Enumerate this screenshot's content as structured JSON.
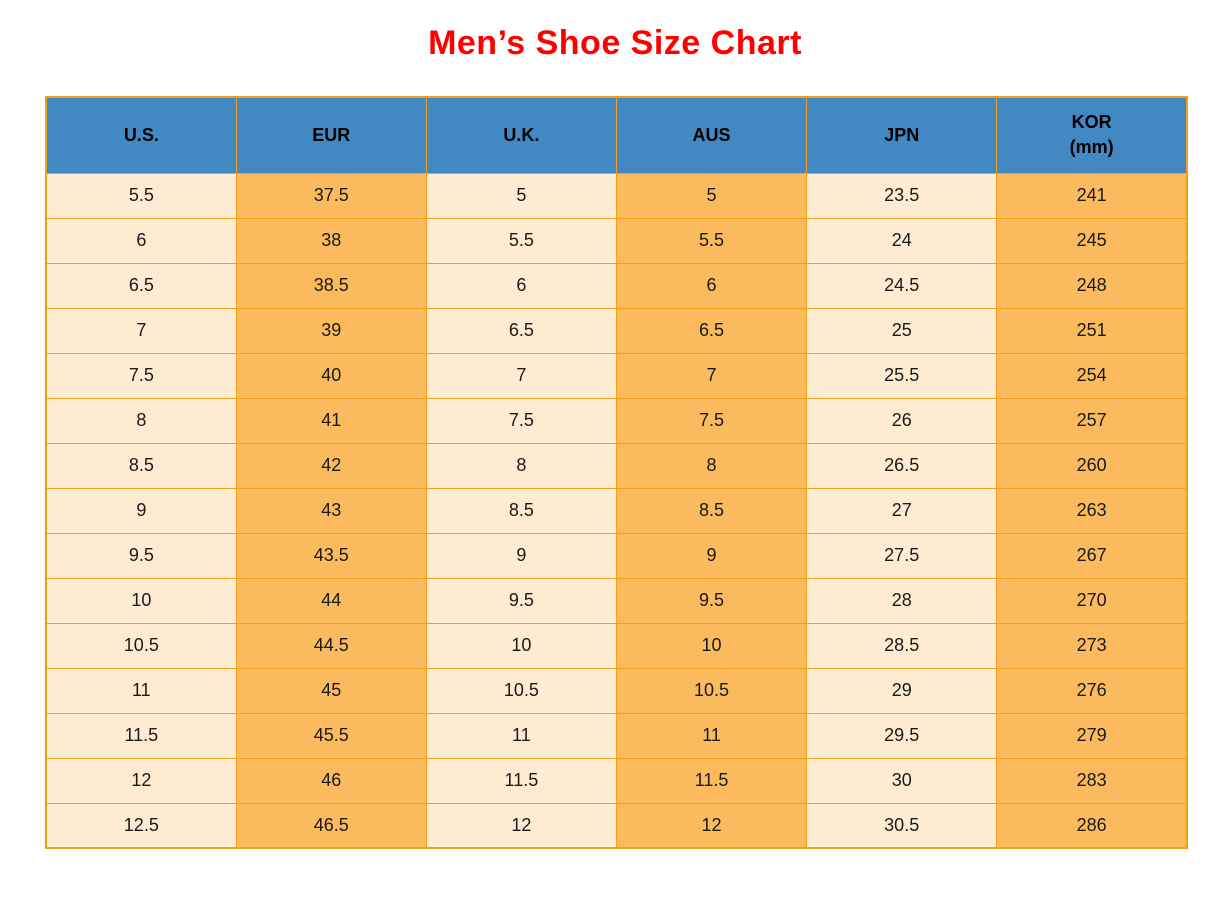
{
  "page": {
    "title": "Men’s Shoe Size Chart"
  },
  "colors": {
    "title_color": "#ff0000",
    "header_bg": "#4289c4",
    "header_text": "#000000",
    "cell_text": "#1a1a1a",
    "grid_color": "#f29f1c",
    "col_light": "#fdecd2",
    "col_orange": "#fcba5e"
  },
  "chart_data": {
    "type": "table",
    "title": "Men’s Shoe Size Chart",
    "columns": [
      "U.S.",
      "EUR",
      "U.K.",
      "AUS",
      "JPN",
      "KOR"
    ],
    "column_sublabels": [
      "",
      "",
      "",
      "",
      "",
      "(mm)"
    ],
    "column_shading": [
      "light",
      "orange",
      "light",
      "orange",
      "light",
      "orange"
    ],
    "rows": [
      [
        "5.5",
        "37.5",
        "5",
        "5",
        "23.5",
        "241"
      ],
      [
        "6",
        "38",
        "5.5",
        "5.5",
        "24",
        "245"
      ],
      [
        "6.5",
        "38.5",
        "6",
        "6",
        "24.5",
        "248"
      ],
      [
        "7",
        "39",
        "6.5",
        "6.5",
        "25",
        "251"
      ],
      [
        "7.5",
        "40",
        "7",
        "7",
        "25.5",
        "254"
      ],
      [
        "8",
        "41",
        "7.5",
        "7.5",
        "26",
        "257"
      ],
      [
        "8.5",
        "42",
        "8",
        "8",
        "26.5",
        "260"
      ],
      [
        "9",
        "43",
        "8.5",
        "8.5",
        "27",
        "263"
      ],
      [
        "9.5",
        "43.5",
        "9",
        "9",
        "27.5",
        "267"
      ],
      [
        "10",
        "44",
        "9.5",
        "9.5",
        "28",
        "270"
      ],
      [
        "10.5",
        "44.5",
        "10",
        "10",
        "28.5",
        "273"
      ],
      [
        "11",
        "45",
        "10.5",
        "10.5",
        "29",
        "276"
      ],
      [
        "11.5",
        "45.5",
        "11",
        "11",
        "29.5",
        "279"
      ],
      [
        "12",
        "46",
        "11.5",
        "11.5",
        "30",
        "283"
      ],
      [
        "12.5",
        "46.5",
        "12",
        "12",
        "30.5",
        "286"
      ]
    ]
  }
}
